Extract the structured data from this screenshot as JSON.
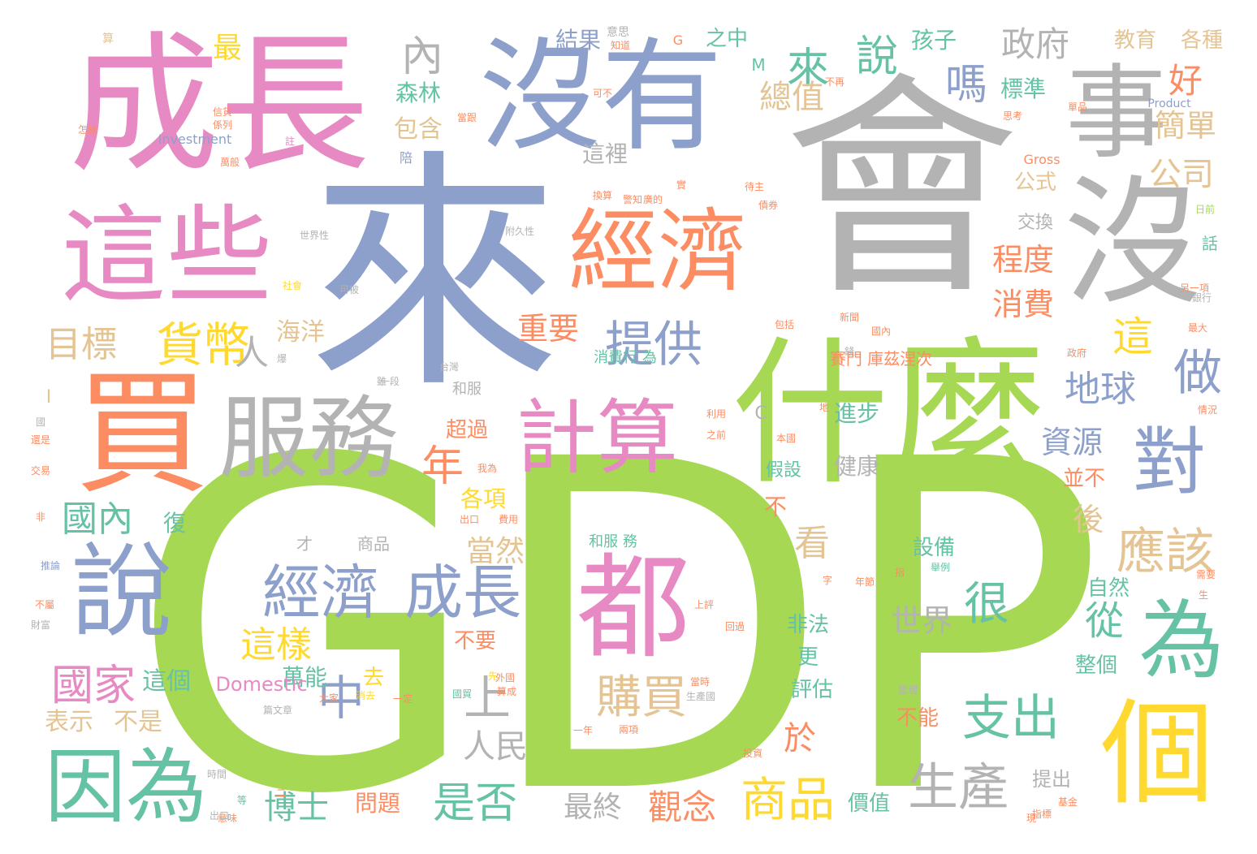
{
  "palette": {
    "pink": "#e78ac3",
    "blue": "#8da0cb",
    "gray": "#b3b3b3",
    "orange": "#fc8d62",
    "green": "#a6d854",
    "teal": "#66c2a5",
    "yellow": "#ffd92f",
    "tan": "#e5c494"
  },
  "words": [
    {
      "text": "GDP"
    },
    {
      "text": "來"
    },
    {
      "text": "會"
    },
    {
      "text": "成長"
    },
    {
      "text": "沒有"
    },
    {
      "text": "什麼"
    },
    {
      "text": "事"
    },
    {
      "text": "這些"
    },
    {
      "text": "經濟"
    },
    {
      "text": "沒"
    },
    {
      "text": "買"
    },
    {
      "text": "服務"
    },
    {
      "text": "計算"
    },
    {
      "text": "都"
    },
    {
      "text": "說"
    },
    {
      "text": "個"
    },
    {
      "text": "為"
    },
    {
      "text": "因為"
    },
    {
      "text": "對"
    },
    {
      "text": "經濟"
    },
    {
      "text": "成長"
    },
    {
      "text": "提供"
    },
    {
      "text": "貨幣"
    },
    {
      "text": "來"
    },
    {
      "text": "說"
    },
    {
      "text": "內"
    },
    {
      "text": "政府"
    },
    {
      "text": "嗎"
    },
    {
      "text": "好"
    },
    {
      "text": "公司"
    },
    {
      "text": "地球"
    },
    {
      "text": "做"
    },
    {
      "text": "這"
    },
    {
      "text": "支出"
    },
    {
      "text": "生產"
    },
    {
      "text": "商品"
    },
    {
      "text": "應該"
    },
    {
      "text": "中"
    },
    {
      "text": "上"
    },
    {
      "text": "購買"
    },
    {
      "text": "很"
    },
    {
      "text": "國家"
    },
    {
      "text": "國內"
    },
    {
      "text": "目標"
    },
    {
      "text": "總值"
    },
    {
      "text": "重要"
    },
    {
      "text": "程度"
    },
    {
      "text": "消費"
    },
    {
      "text": "簡單"
    },
    {
      "text": "從"
    },
    {
      "text": "是否"
    },
    {
      "text": "博士"
    },
    {
      "text": "觀念"
    },
    {
      "text": "這樣"
    },
    {
      "text": "年"
    },
    {
      "text": "人"
    },
    {
      "text": "世界"
    },
    {
      "text": "人民"
    },
    {
      "text": "資源"
    },
    {
      "text": "看"
    },
    {
      "text": "於"
    },
    {
      "text": "後"
    },
    {
      "text": "當然"
    },
    {
      "text": "海洋"
    },
    {
      "text": "標準"
    },
    {
      "text": "森林"
    },
    {
      "text": "最"
    },
    {
      "text": "孩子"
    },
    {
      "text": "教育"
    },
    {
      "text": "各種"
    },
    {
      "text": "之中"
    },
    {
      "text": "結果"
    },
    {
      "text": "這裡"
    },
    {
      "text": "交換"
    },
    {
      "text": "公式"
    },
    {
      "text": "包含"
    },
    {
      "text": "不"
    },
    {
      "text": "進步"
    },
    {
      "text": "健康"
    },
    {
      "text": "假設"
    },
    {
      "text": "更"
    },
    {
      "text": "非法"
    },
    {
      "text": "評估"
    },
    {
      "text": "不能"
    },
    {
      "text": "最終"
    },
    {
      "text": "問題"
    },
    {
      "text": "價值"
    },
    {
      "text": "提出"
    },
    {
      "text": "整個"
    },
    {
      "text": "自然"
    },
    {
      "text": "設備"
    },
    {
      "text": "表示"
    },
    {
      "text": "不是"
    },
    {
      "text": "萬能"
    },
    {
      "text": "去"
    },
    {
      "text": "這個"
    },
    {
      "text": "復"
    },
    {
      "text": "各項"
    },
    {
      "text": "超過"
    },
    {
      "text": "並不"
    },
    {
      "text": "不要"
    },
    {
      "text": "才"
    },
    {
      "text": "商品"
    },
    {
      "text": "和服"
    },
    {
      "text": "和服 務"
    },
    {
      "text": "消費行 為"
    },
    {
      "text": "賽門 庫茲涅次"
    },
    {
      "text": "話"
    },
    {
      "text": "陪"
    },
    {
      "text": "Investment"
    },
    {
      "text": "Gross"
    },
    {
      "text": "Product"
    },
    {
      "text": "Domestic"
    },
    {
      "text": "C"
    },
    {
      "text": "G"
    },
    {
      "text": "M"
    },
    {
      "text": "I"
    },
    {
      "text": "算"
    },
    {
      "text": "意思"
    },
    {
      "text": "知道"
    },
    {
      "text": "當跟"
    },
    {
      "text": "可不"
    },
    {
      "text": "不再"
    },
    {
      "text": "思考"
    },
    {
      "text": "單品"
    },
    {
      "text": "信貸"
    },
    {
      "text": "係列"
    },
    {
      "text": "怎樣"
    },
    {
      "text": "萬般"
    },
    {
      "text": "待主"
    },
    {
      "text": "債券"
    },
    {
      "text": "世界性"
    },
    {
      "text": "附久性"
    },
    {
      "text": "社會"
    },
    {
      "text": "可被"
    },
    {
      "text": "台灣"
    },
    {
      "text": "一段"
    },
    {
      "text": "包括"
    },
    {
      "text": "新聞"
    },
    {
      "text": "最大"
    },
    {
      "text": "政府"
    },
    {
      "text": "銀行"
    },
    {
      "text": "另一項"
    },
    {
      "text": "日前"
    },
    {
      "text": "情況"
    },
    {
      "text": "之前"
    },
    {
      "text": "本國"
    },
    {
      "text": "意味"
    },
    {
      "text": "我為"
    },
    {
      "text": "出口"
    },
    {
      "text": "費用"
    },
    {
      "text": "外國"
    },
    {
      "text": "算成"
    },
    {
      "text": "一定"
    },
    {
      "text": "大家"
    },
    {
      "text": "篇文章"
    },
    {
      "text": "一年"
    },
    {
      "text": "兩項"
    },
    {
      "text": "投資"
    },
    {
      "text": "當時"
    },
    {
      "text": "生產國"
    },
    {
      "text": "發現"
    },
    {
      "text": "基金"
    },
    {
      "text": "指標"
    },
    {
      "text": "時間"
    },
    {
      "text": "出口"
    },
    {
      "text": "財富"
    },
    {
      "text": "不屬"
    },
    {
      "text": "交易"
    },
    {
      "text": "還是"
    },
    {
      "text": "國"
    },
    {
      "text": "非"
    },
    {
      "text": "推論"
    },
    {
      "text": "上評"
    },
    {
      "text": "指"
    },
    {
      "text": "生"
    },
    {
      "text": "需要"
    },
    {
      "text": "舉例"
    },
    {
      "text": "警知"
    },
    {
      "text": "廣的"
    },
    {
      "text": "實"
    },
    {
      "text": "換算"
    },
    {
      "text": "回過"
    },
    {
      "text": "字"
    },
    {
      "text": "先"
    },
    {
      "text": "國貿"
    },
    {
      "text": "二"
    },
    {
      "text": "消去"
    },
    {
      "text": "利用"
    },
    {
      "text": "年節"
    },
    {
      "text": "地"
    },
    {
      "text": "註"
    },
    {
      "text": "國內"
    },
    {
      "text": "錢"
    },
    {
      "text": "爆"
    },
    {
      "text": "雖"
    },
    {
      "text": "現"
    },
    {
      "text": "等"
    },
    {
      "text": "x"
    },
    {
      "text": "富"
    }
  ]
}
